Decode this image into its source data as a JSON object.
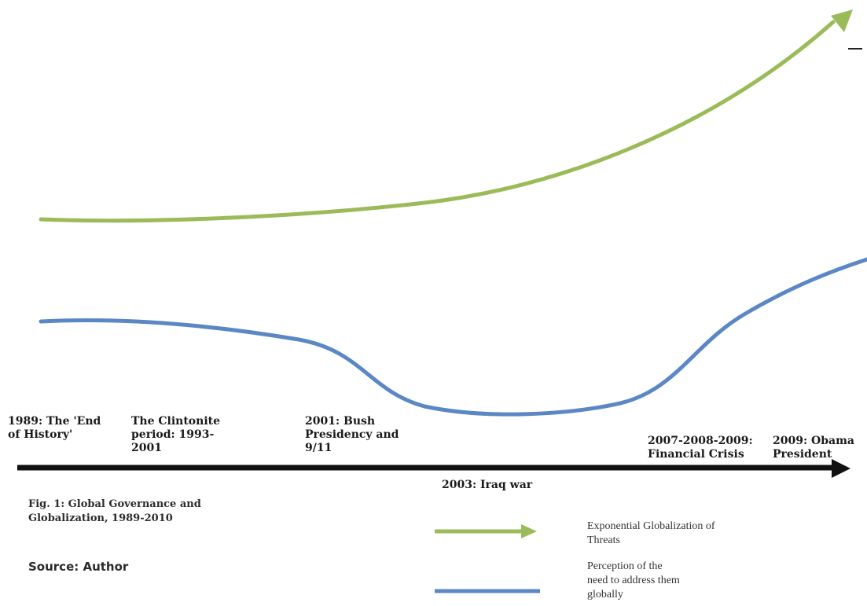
{
  "colors": {
    "globalization": "#9bbb59",
    "perception": "#5b87c5",
    "axis": "#111111",
    "text": "#1a1a1a"
  },
  "events": [
    "1989: The 'End\nof History'",
    "The Clintonite\nperiod: 1993-\n2001",
    "2001: Bush\nPresidency and\n9/11",
    "2003: Iraq war",
    "2007-2008-2009:\nFinancial Crisis",
    "2009: Obama\nPresident"
  ],
  "caption": {
    "title": "Fig. 1: Global Governance and\nGlobalization, 1989-2010",
    "source": "Source: Author"
  },
  "legend": {
    "globalization": "Exponential Globalization of\nThreats",
    "perception": "Perception of the\nneed to address them\nglobally"
  }
}
